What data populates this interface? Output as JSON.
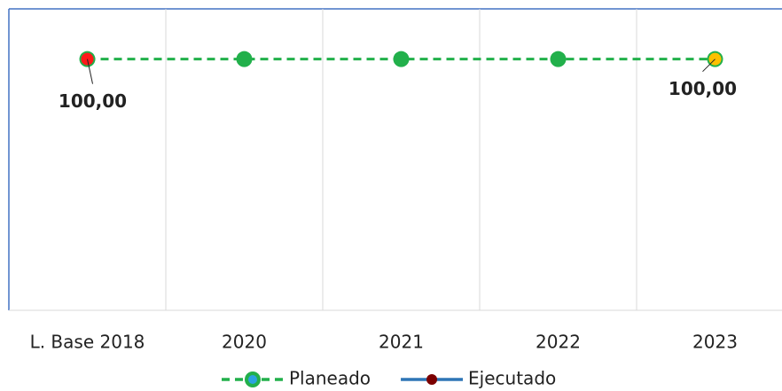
{
  "chart_data": {
    "type": "line",
    "categories": [
      "L. Base 2018",
      "2020",
      "2021",
      "2022",
      "2023"
    ],
    "series": [
      {
        "name": "Planeado",
        "color": "#22b04b",
        "values": [
          100,
          100,
          100,
          100,
          100
        ]
      },
      {
        "name": "Ejecutado",
        "color": "#2e75b6",
        "marker_color": "#7b0000",
        "point_colors": [
          "#ff1a1a",
          null,
          null,
          null,
          "#ffc000"
        ],
        "values": [
          100,
          null,
          null,
          null,
          100
        ],
        "value_labels": [
          "100,00",
          null,
          null,
          null,
          "100,00"
        ]
      }
    ],
    "ylim": [
      0,
      120
    ],
    "grid": true,
    "legend": "bottom"
  }
}
